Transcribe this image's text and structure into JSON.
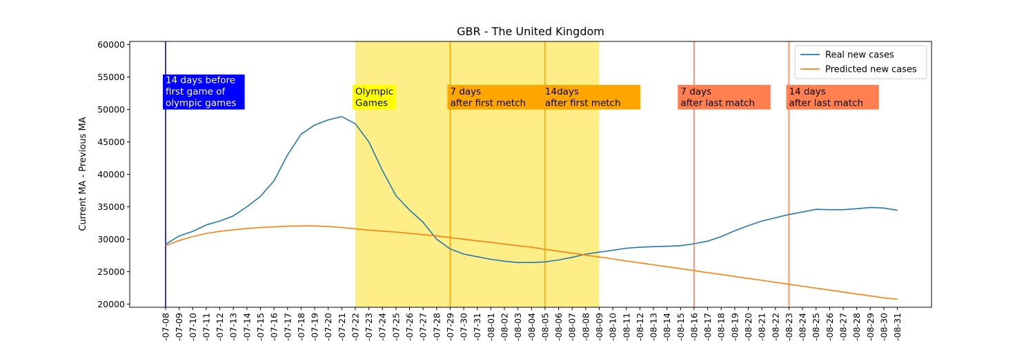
{
  "chart_data": {
    "type": "line",
    "title": "GBR - The United Kingdom",
    "xlabel": "",
    "ylabel": "Current MA - Previous MA",
    "ylim": [
      19500,
      60500
    ],
    "yticks": [
      20000,
      25000,
      30000,
      35000,
      40000,
      45000,
      50000,
      55000,
      60000
    ],
    "legend_position": "top-right",
    "x": [
      "-07-08",
      "-07-09",
      "-07-10",
      "-07-11",
      "-07-12",
      "-07-13",
      "-07-14",
      "-07-15",
      "-07-16",
      "-07-17",
      "-07-18",
      "-07-19",
      "-07-20",
      "-07-21",
      "-07-22",
      "-07-23",
      "-07-24",
      "-07-25",
      "-07-26",
      "-07-27",
      "-07-28",
      "-07-29",
      "-07-30",
      "-07-31",
      "-08-01",
      "-08-02",
      "-08-03",
      "-08-04",
      "-08-05",
      "-08-06",
      "-08-07",
      "-08-08",
      "-08-09",
      "-08-10",
      "-08-11",
      "-08-12",
      "-08-13",
      "-08-14",
      "-08-15",
      "-08-16",
      "-08-17",
      "-08-18",
      "-08-19",
      "-08-20",
      "-08-21",
      "-08-22",
      "-08-23",
      "-08-24",
      "-08-25",
      "-08-26",
      "-08-27",
      "-08-28",
      "-08-29",
      "-08-30",
      "-08-31"
    ],
    "series": [
      {
        "name": "Real new cases",
        "color": "#1f77b4",
        "values": [
          29200,
          30500,
          31200,
          32200,
          32800,
          33600,
          35000,
          36600,
          39000,
          43000,
          46200,
          47600,
          48400,
          48900,
          47800,
          45000,
          40600,
          36700,
          34500,
          32600,
          30000,
          28500,
          27700,
          27300,
          26900,
          26600,
          26400,
          26400,
          26500,
          26800,
          27200,
          27700,
          28000,
          28300,
          28600,
          28750,
          28850,
          28900,
          29000,
          29300,
          29700,
          30400,
          31300,
          32100,
          32800,
          33300,
          33800,
          34200,
          34600,
          34550,
          34550,
          34700,
          34900,
          34800,
          34450
        ]
      },
      {
        "name": "Predicted new cases",
        "color": "#ff7f0e",
        "values": [
          29000,
          29800,
          30400,
          30900,
          31200,
          31450,
          31650,
          31800,
          31900,
          32000,
          32050,
          32050,
          31950,
          31800,
          31600,
          31400,
          31250,
          31100,
          30900,
          30700,
          30500,
          30250,
          30000,
          29750,
          29500,
          29250,
          29000,
          28750,
          28450,
          28150,
          27850,
          27550,
          27250,
          26950,
          26650,
          26350,
          26050,
          25750,
          25450,
          25150,
          24850,
          24550,
          24250,
          23950,
          23650,
          23350,
          23050,
          22750,
          22450,
          22150,
          21850,
          21550,
          21250,
          20950,
          20750
        ]
      }
    ],
    "shaded_region": {
      "from": "-07-22",
      "to": "-08-09",
      "color": "#fdee87"
    },
    "vertical_lines": [
      {
        "at": "-07-08",
        "color": "#0000cc"
      },
      {
        "at": "-07-29",
        "color": "#ffa500"
      },
      {
        "at": "-08-05",
        "color": "#ffa500"
      },
      {
        "at": "-08-16",
        "color": "#ff7f50"
      },
      {
        "at": "-08-23",
        "color": "#ff7f50"
      }
    ],
    "annotations": [
      {
        "at": "-07-08",
        "lines": [
          "14 days before",
          "first game of",
          "olympic games"
        ],
        "bg": "#0000ff",
        "fg": "#ffffff",
        "y": 50000,
        "h": 5400
      },
      {
        "at": "-07-22",
        "lines": [
          "Olympic",
          "Games"
        ],
        "bg": "#ffff00",
        "fg": "#000000",
        "y": 50000,
        "h": 3800
      },
      {
        "at": "-07-29",
        "lines": [
          "7 days",
          "after first metch"
        ],
        "bg": "#ffa500",
        "fg": "#000000",
        "y": 50000,
        "h": 3800
      },
      {
        "at": "-08-05",
        "lines": [
          "14days",
          "after first metch"
        ],
        "bg": "#ffa500",
        "fg": "#000000",
        "y": 50000,
        "h": 3800
      },
      {
        "at": "-08-15",
        "lines": [
          "7 days",
          "after last match"
        ],
        "bg": "#ff7f50",
        "fg": "#000000",
        "y": 50000,
        "h": 3800
      },
      {
        "at": "-08-23",
        "lines": [
          "14 days",
          "after last match"
        ],
        "bg": "#ff7f50",
        "fg": "#000000",
        "y": 50000,
        "h": 3800
      }
    ]
  }
}
